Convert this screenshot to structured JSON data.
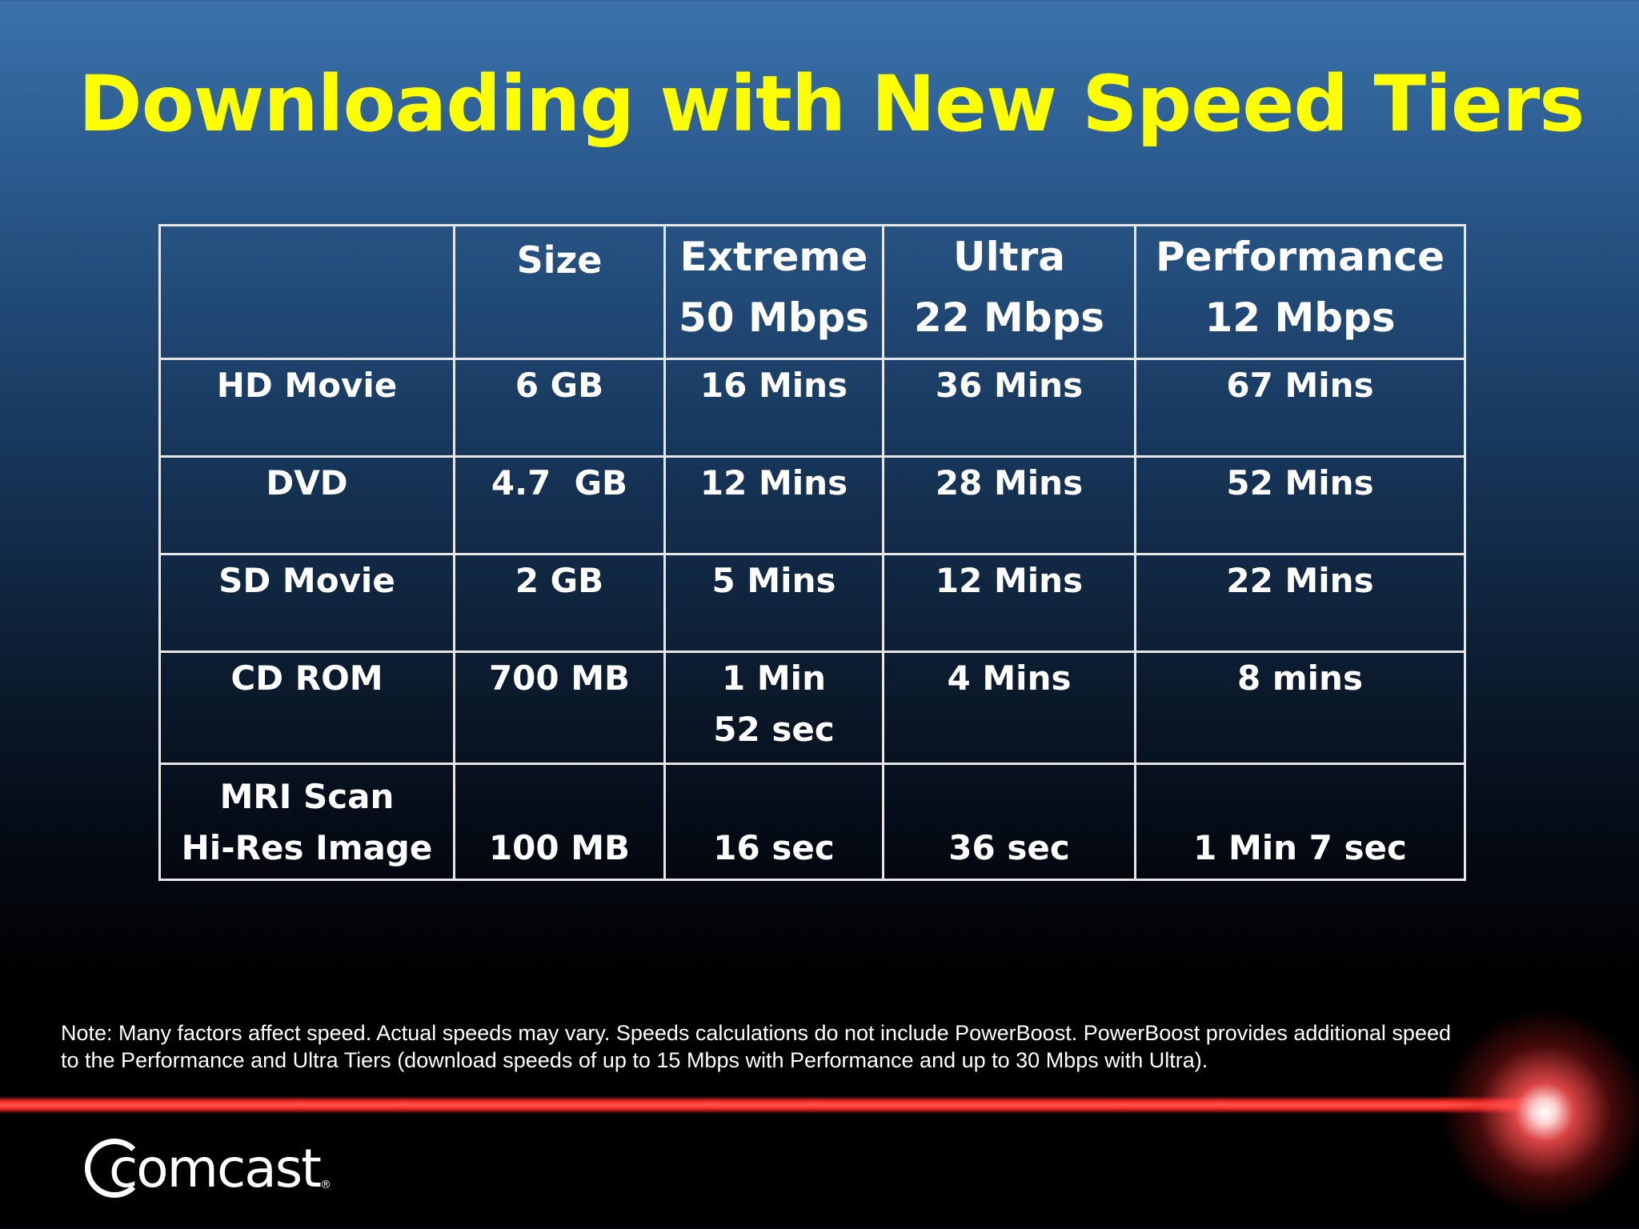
{
  "title": "Downloading with New Speed Tiers",
  "table": {
    "header": [
      {
        "lines": [
          ""
        ]
      },
      {
        "lines": [
          "Size"
        ]
      },
      {
        "lines": [
          "Extreme",
          "50 Mbps"
        ]
      },
      {
        "lines": [
          "Ultra",
          "22 Mbps"
        ]
      },
      {
        "lines": [
          "Performance",
          "12 Mbps"
        ]
      }
    ],
    "rows": [
      {
        "item": [
          "HD Movie"
        ],
        "size": "6 GB",
        "extreme": [
          "16 Mins"
        ],
        "ultra": "36 Mins",
        "performance": "67 Mins"
      },
      {
        "item": [
          "DVD"
        ],
        "size": "4.7  GB",
        "extreme": [
          "12 Mins"
        ],
        "ultra": "28 Mins",
        "performance": "52 Mins"
      },
      {
        "item": [
          "SD Movie"
        ],
        "size": "2 GB",
        "extreme": [
          "5 Mins"
        ],
        "ultra": "12 Mins",
        "performance": "22 Mins"
      },
      {
        "item": [
          "CD ROM"
        ],
        "size": "700 MB",
        "extreme": [
          "1 Min",
          "52 sec"
        ],
        "ultra": "4 Mins",
        "performance": "8 mins"
      },
      {
        "item": [
          "MRI Scan",
          "Hi-Res Image"
        ],
        "size": "100 MB",
        "extreme": [
          "16 sec"
        ],
        "ultra": "36 sec",
        "performance": "1 Min 7 sec"
      }
    ]
  },
  "note": "Note: Many factors affect speed. Actual speeds may vary. Speeds calculations do not include PowerBoost. PowerBoost provides additional speed to the Performance and Ultra Tiers (download speeds of up to 15 Mbps with Performance and up to 30 Mbps with Ultra).",
  "logo": {
    "text": "comcast",
    "mark": "®"
  },
  "colors": {
    "title": "#ffff00",
    "text": "#ffffff",
    "grid": "#e6e6e6",
    "laser": "#ff2a2a"
  }
}
